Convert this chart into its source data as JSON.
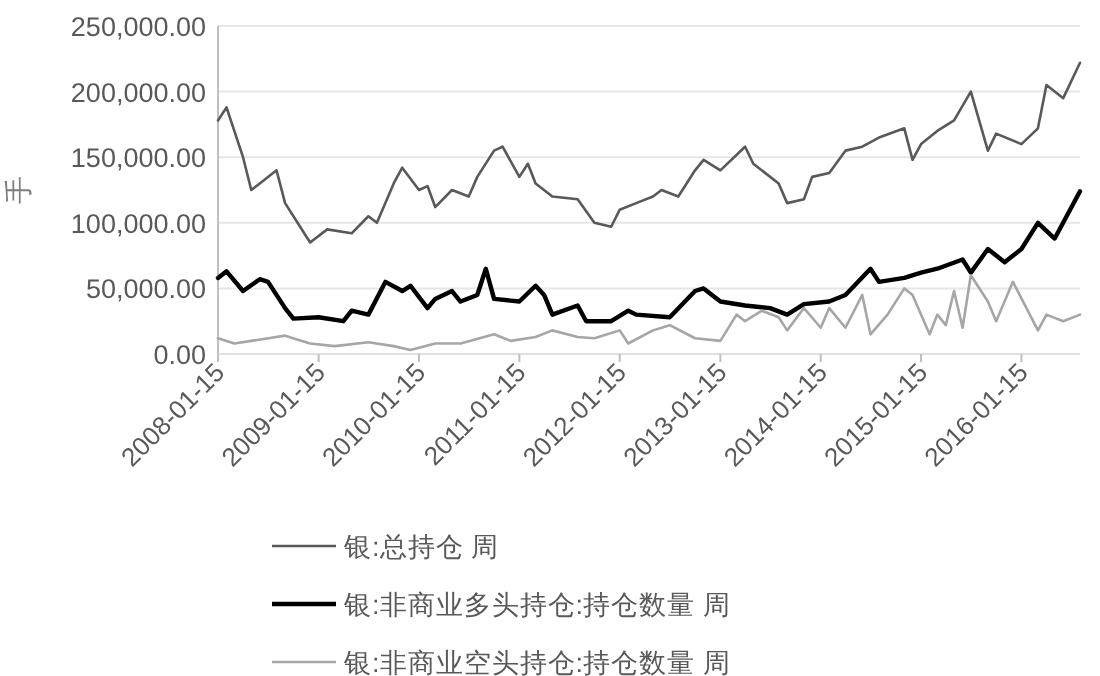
{
  "chart_data": {
    "type": "line",
    "ylabel": "手",
    "grid": "y",
    "legend": "bottom",
    "xlim": [
      "2008-01-15",
      "2016-08-15"
    ],
    "xticks": [
      "2008-01-15",
      "2009-01-15",
      "2010-01-15",
      "2011-01-15",
      "2012-01-15",
      "2013-01-15",
      "2014-01-15",
      "2015-01-15",
      "2016-01-15"
    ],
    "ylim": [
      0,
      250000
    ],
    "yticks": [
      {
        "value": 0,
        "label": "0.00"
      },
      {
        "value": 50000,
        "label": "50,000.00"
      },
      {
        "value": 100000,
        "label": "100,000.00"
      },
      {
        "value": 150000,
        "label": "150,000.00"
      },
      {
        "value": 200000,
        "label": "200,000.00"
      },
      {
        "value": 250000,
        "label": "250,000.00"
      }
    ],
    "series": [
      {
        "name": "银:总持仓 周",
        "color": "#595959",
        "x": [
          "2008-01-15",
          "2008-02-15",
          "2008-04-15",
          "2008-05-15",
          "2008-06-15",
          "2008-08-15",
          "2008-09-15",
          "2008-12-15",
          "2009-02-15",
          "2009-05-15",
          "2009-07-15",
          "2009-08-15",
          "2009-10-15",
          "2009-11-15",
          "2010-01-15",
          "2010-02-15",
          "2010-03-15",
          "2010-05-15",
          "2010-07-15",
          "2010-08-15",
          "2010-10-15",
          "2010-11-15",
          "2011-01-15",
          "2011-02-15",
          "2011-03-15",
          "2011-05-15",
          "2011-08-15",
          "2011-10-15",
          "2011-12-15",
          "2012-01-15",
          "2012-03-15",
          "2012-05-15",
          "2012-06-15",
          "2012-08-15",
          "2012-10-15",
          "2012-11-15",
          "2013-01-15",
          "2013-04-15",
          "2013-05-15",
          "2013-08-15",
          "2013-09-15",
          "2013-11-15",
          "2013-12-15",
          "2014-02-15",
          "2014-04-15",
          "2014-06-15",
          "2014-08-15",
          "2014-11-15",
          "2014-12-15",
          "2015-01-15",
          "2015-03-15",
          "2015-05-15",
          "2015-07-15",
          "2015-09-15",
          "2015-10-15",
          "2016-01-15",
          "2016-03-15",
          "2016-04-15",
          "2016-06-15",
          "2016-08-15"
        ],
        "values": [
          178000,
          188000,
          150000,
          125000,
          130000,
          140000,
          115000,
          85000,
          95000,
          92000,
          105000,
          100000,
          130000,
          142000,
          125000,
          128000,
          112000,
          125000,
          120000,
          135000,
          155000,
          158000,
          135000,
          145000,
          130000,
          120000,
          118000,
          100000,
          97000,
          110000,
          115000,
          120000,
          125000,
          120000,
          140000,
          148000,
          140000,
          158000,
          145000,
          130000,
          115000,
          118000,
          135000,
          138000,
          155000,
          158000,
          165000,
          172000,
          148000,
          160000,
          170000,
          178000,
          200000,
          155000,
          168000,
          160000,
          172000,
          205000,
          195000,
          222000
        ]
      },
      {
        "name": "银:非商业多头持仓:持仓数量 周",
        "color": "#000000",
        "x": [
          "2008-01-15",
          "2008-02-15",
          "2008-04-15",
          "2008-06-15",
          "2008-07-15",
          "2008-09-15",
          "2008-10-15",
          "2009-01-15",
          "2009-04-15",
          "2009-05-15",
          "2009-07-15",
          "2009-09-15",
          "2009-11-15",
          "2009-12-15",
          "2010-02-15",
          "2010-03-15",
          "2010-05-15",
          "2010-06-15",
          "2010-08-15",
          "2010-09-15",
          "2010-10-15",
          "2011-01-15",
          "2011-03-15",
          "2011-04-15",
          "2011-05-15",
          "2011-08-15",
          "2011-09-15",
          "2011-12-15",
          "2012-02-15",
          "2012-03-15",
          "2012-07-15",
          "2012-10-15",
          "2012-11-15",
          "2013-01-15",
          "2013-04-15",
          "2013-07-15",
          "2013-09-15",
          "2013-11-15",
          "2014-02-15",
          "2014-04-15",
          "2014-07-15",
          "2014-08-15",
          "2014-11-15",
          "2015-01-15",
          "2015-03-15",
          "2015-06-15",
          "2015-07-15",
          "2015-09-15",
          "2015-11-15",
          "2016-01-15",
          "2016-03-15",
          "2016-05-15",
          "2016-08-15"
        ],
        "values": [
          58000,
          63000,
          48000,
          57000,
          55000,
          35000,
          27000,
          28000,
          25000,
          33000,
          30000,
          55000,
          48000,
          52000,
          35000,
          42000,
          48000,
          40000,
          45000,
          65000,
          42000,
          40000,
          52000,
          45000,
          30000,
          37000,
          25000,
          25000,
          33000,
          30000,
          28000,
          48000,
          50000,
          40000,
          37000,
          35000,
          30000,
          38000,
          40000,
          45000,
          65000,
          55000,
          58000,
          62000,
          65000,
          72000,
          62000,
          80000,
          70000,
          80000,
          100000,
          88000,
          124000
        ]
      },
      {
        "name": "银:非商业空头持仓:持仓数量 周",
        "color": "#a6a6a6",
        "x": [
          "2008-01-15",
          "2008-03-15",
          "2008-05-15",
          "2008-09-15",
          "2008-12-15",
          "2009-03-15",
          "2009-07-15",
          "2009-10-15",
          "2009-12-15",
          "2010-03-15",
          "2010-06-15",
          "2010-10-15",
          "2010-12-15",
          "2011-03-15",
          "2011-05-15",
          "2011-08-15",
          "2011-10-15",
          "2012-01-15",
          "2012-02-15",
          "2012-05-15",
          "2012-07-15",
          "2012-10-15",
          "2013-01-15",
          "2013-03-15",
          "2013-04-15",
          "2013-06-15",
          "2013-08-15",
          "2013-09-15",
          "2013-11-15",
          "2014-01-15",
          "2014-02-15",
          "2014-04-15",
          "2014-06-15",
          "2014-07-15",
          "2014-09-15",
          "2014-11-15",
          "2014-12-15",
          "2015-02-15",
          "2015-03-15",
          "2015-04-15",
          "2015-05-15",
          "2015-06-15",
          "2015-07-15",
          "2015-09-15",
          "2015-10-15",
          "2015-12-15",
          "2016-03-15",
          "2016-04-15",
          "2016-06-15",
          "2016-08-15"
        ],
        "values": [
          12000,
          8000,
          10000,
          14000,
          8000,
          6000,
          9000,
          6000,
          3000,
          8000,
          8000,
          15000,
          10000,
          13000,
          18000,
          13000,
          12000,
          18000,
          8000,
          18000,
          22000,
          12000,
          10000,
          30000,
          25000,
          33000,
          28000,
          18000,
          35000,
          20000,
          35000,
          20000,
          45000,
          15000,
          30000,
          50000,
          45000,
          15000,
          30000,
          22000,
          48000,
          20000,
          60000,
          40000,
          25000,
          55000,
          18000,
          30000,
          25000,
          30000
        ]
      }
    ]
  }
}
